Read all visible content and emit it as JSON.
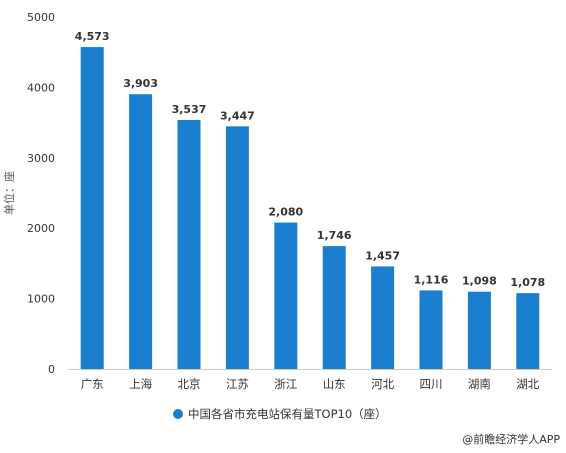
{
  "chart_data": {
    "type": "bar",
    "categories": [
      "广东",
      "上海",
      "北京",
      "江苏",
      "浙江",
      "山东",
      "河北",
      "四川",
      "湖南",
      "湖北"
    ],
    "series": [
      {
        "name": "中国各省市充电站保有量TOP10（座）",
        "values": [
          4573,
          3903,
          3537,
          3447,
          2080,
          1746,
          1457,
          1116,
          1098,
          1078
        ]
      }
    ],
    "data_labels": [
      "4,573",
      "3,903",
      "3,537",
      "3,447",
      "2,080",
      "1,746",
      "1,457",
      "1,116",
      "1,098",
      "1,078"
    ],
    "ylabel": "单位：座",
    "ylim": [
      0,
      5000
    ],
    "yticks": [
      0,
      1000,
      2000,
      3000,
      4000,
      5000
    ],
    "grid": false,
    "legend_position": "bottom-center",
    "bar_color": "#1a7fce"
  },
  "source": "@前瞻经济学人APP"
}
